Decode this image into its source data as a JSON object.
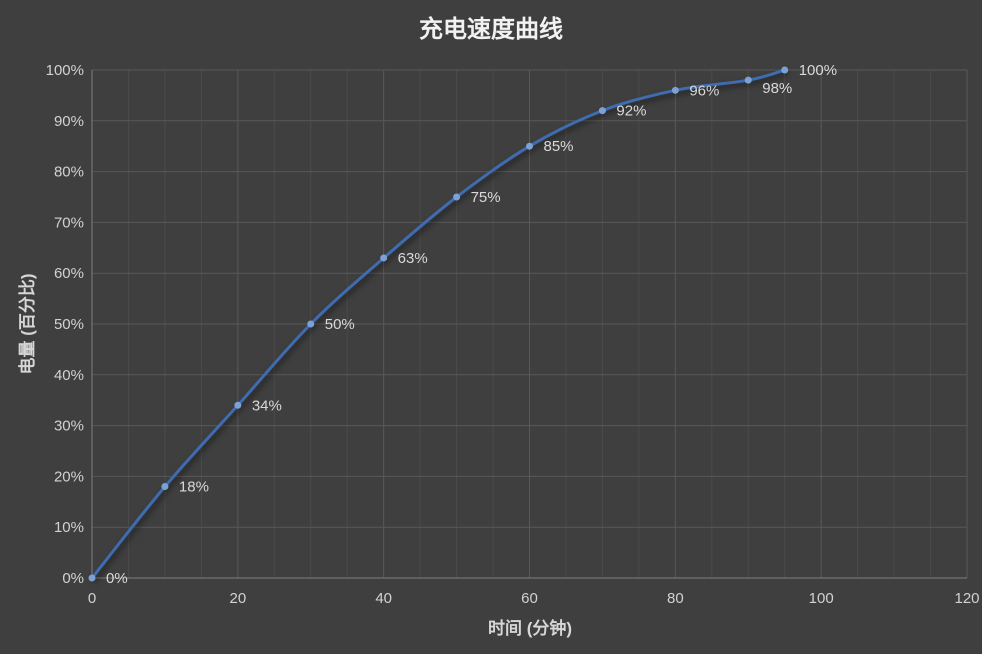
{
  "title": "充电速度曲线",
  "chart_data": {
    "type": "line",
    "title": "充电速度曲线",
    "xlabel": "时间 (分钟)",
    "ylabel": "电量 (百分比)",
    "x": [
      0,
      10,
      20,
      30,
      40,
      50,
      60,
      70,
      80,
      90,
      95
    ],
    "values": [
      0,
      18,
      34,
      50,
      63,
      75,
      85,
      92,
      96,
      98,
      100
    ],
    "point_labels": [
      "0%",
      "18%",
      "34%",
      "50%",
      "63%",
      "75%",
      "85%",
      "92%",
      "96%",
      "98%",
      "100%"
    ],
    "xlim": [
      0,
      120
    ],
    "ylim": [
      0,
      100
    ],
    "x_tick_labels": [
      "0",
      "20",
      "40",
      "60",
      "80",
      "100",
      "120"
    ],
    "x_tick_values": [
      0,
      20,
      40,
      60,
      80,
      100,
      120
    ],
    "x_minor_step": 5,
    "y_tick_labels": [
      "0%",
      "10%",
      "20%",
      "30%",
      "40%",
      "50%",
      "60%",
      "70%",
      "80%",
      "90%",
      "100%"
    ],
    "y_tick_values": [
      0,
      10,
      20,
      30,
      40,
      50,
      60,
      70,
      80,
      90,
      100
    ],
    "grid": true,
    "smooth": true,
    "legend": "none",
    "colors": {
      "background": "#3f3f3f",
      "line": "#3f6cb1",
      "marker": "#7ca1d4",
      "data_label": "#d9d9d9",
      "grid_major": "#595959",
      "grid_minor": "#4b4b4b",
      "axis_line": "#7f7f7f",
      "title": "#f2f2f2",
      "axis_text": "#d2d2d2"
    }
  }
}
